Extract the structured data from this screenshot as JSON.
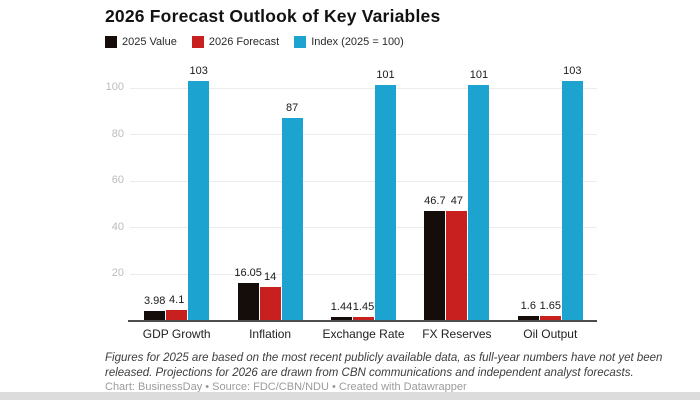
{
  "chart_data": {
    "type": "bar",
    "title": "2026 Forecast Outlook of Key Variables",
    "categories": [
      "GDP Growth",
      "Inflation",
      "Exchange Rate",
      "FX Reserves",
      "Oil Output"
    ],
    "series": [
      {
        "name": "2025 Value",
        "color": "#150d0a",
        "values": [
          3.98,
          16.05,
          1.44,
          46.7,
          1.6
        ],
        "labels": [
          "3.98",
          "16.05",
          "1.44",
          "46.7",
          "1.6"
        ]
      },
      {
        "name": "2026 Forecast",
        "color": "#c7201f",
        "values": [
          4.1,
          14,
          1.45,
          47,
          1.65
        ],
        "labels": [
          "4.1",
          "14",
          "1.45",
          "47",
          "1.65"
        ]
      },
      {
        "name": "Index (2025 = 100)",
        "color": "#1ca3cf",
        "values": [
          103,
          87,
          101,
          101,
          103
        ],
        "labels": [
          "103",
          "87",
          "101",
          "101",
          "103"
        ]
      }
    ],
    "y_ticks": [
      20,
      40,
      60,
      80,
      100
    ],
    "ylim": [
      0,
      112
    ],
    "xlabel": "",
    "ylabel": "",
    "grid": "horizontal",
    "legend_position": "top"
  },
  "footer": {
    "note_line1": "Figures for 2025 are based on the most recent publicly available data, as full-year numbers have not yet been",
    "note_line2": "released. Projections for 2026 are drawn from CBN communications and independent analyst forecasts.",
    "credit": "Chart: BusinessDay • Source: FDC/CBN/NDU • Created with Datawrapper"
  }
}
